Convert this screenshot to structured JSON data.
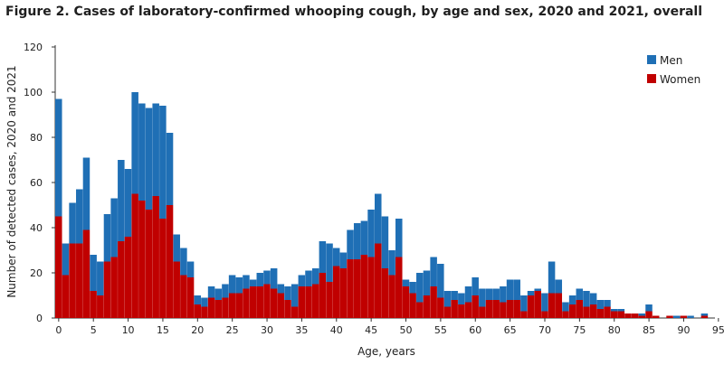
{
  "chart_data": {
    "type": "bar",
    "stacked": true,
    "title": "Figure 2. Cases of laboratory-confirmed whooping cough, by age and sex, 2020 and 2021, overall",
    "xlabel": "Age, years",
    "ylabel": "Number of detected cases, 2020 and 2021",
    "xlim": [
      0,
      95
    ],
    "ylim": [
      0,
      120
    ],
    "x_ticks": [
      0,
      5,
      10,
      15,
      20,
      25,
      30,
      35,
      40,
      45,
      50,
      55,
      60,
      65,
      70,
      75,
      80,
      85,
      90,
      95
    ],
    "y_ticks": [
      0,
      20,
      40,
      60,
      80,
      100,
      120
    ],
    "legend_position": "top-right",
    "colors": {
      "Men": "#1f6fb5",
      "Women": "#c00000"
    },
    "x": [
      0,
      1,
      2,
      3,
      4,
      5,
      6,
      7,
      8,
      9,
      10,
      11,
      12,
      13,
      14,
      15,
      16,
      17,
      18,
      19,
      20,
      21,
      22,
      23,
      24,
      25,
      26,
      27,
      28,
      29,
      30,
      31,
      32,
      33,
      34,
      35,
      36,
      37,
      38,
      39,
      40,
      41,
      42,
      43,
      44,
      45,
      46,
      47,
      48,
      49,
      50,
      51,
      52,
      53,
      54,
      55,
      56,
      57,
      58,
      59,
      60,
      61,
      62,
      63,
      64,
      65,
      66,
      67,
      68,
      69,
      70,
      71,
      72,
      73,
      74,
      75,
      76,
      77,
      78,
      79,
      80,
      81,
      82,
      83,
      84,
      85,
      86,
      87,
      88,
      89,
      90,
      91,
      92,
      93,
      94
    ],
    "series": [
      {
        "name": "Women",
        "values": [
          45,
          19,
          33,
          33,
          39,
          12,
          10,
          25,
          27,
          34,
          36,
          55,
          52,
          48,
          54,
          44,
          50,
          25,
          19,
          18,
          6,
          5,
          9,
          8,
          9,
          11,
          11,
          13,
          14,
          14,
          15,
          13,
          11,
          8,
          5,
          14,
          14,
          15,
          20,
          16,
          23,
          22,
          26,
          26,
          28,
          27,
          33,
          22,
          19,
          27,
          14,
          11,
          7,
          10,
          14,
          9,
          5,
          8,
          6,
          7,
          10,
          5,
          8,
          8,
          7,
          8,
          8,
          3,
          10,
          12,
          3,
          11,
          11,
          3,
          6,
          8,
          5,
          6,
          4,
          5,
          3,
          3,
          2,
          2,
          1,
          3,
          1,
          0,
          1,
          0,
          1,
          0,
          0,
          1,
          0
        ]
      },
      {
        "name": "Men",
        "values": [
          52,
          14,
          18,
          24,
          32,
          16,
          15,
          21,
          26,
          36,
          30,
          45,
          43,
          45,
          41,
          50,
          32,
          12,
          12,
          7,
          4,
          4,
          5,
          5,
          6,
          8,
          7,
          6,
          3,
          6,
          6,
          9,
          4,
          6,
          10,
          5,
          7,
          7,
          14,
          17,
          8,
          7,
          13,
          16,
          15,
          21,
          22,
          23,
          11,
          17,
          3,
          5,
          13,
          11,
          13,
          15,
          7,
          4,
          5,
          7,
          8,
          8,
          5,
          5,
          7,
          9,
          9,
          7,
          2,
          1,
          8,
          14,
          6,
          4,
          4,
          5,
          7,
          5,
          4,
          3,
          1,
          1,
          0,
          0,
          1,
          3,
          0,
          0,
          0,
          1,
          0,
          1,
          0,
          1,
          0
        ]
      }
    ]
  }
}
